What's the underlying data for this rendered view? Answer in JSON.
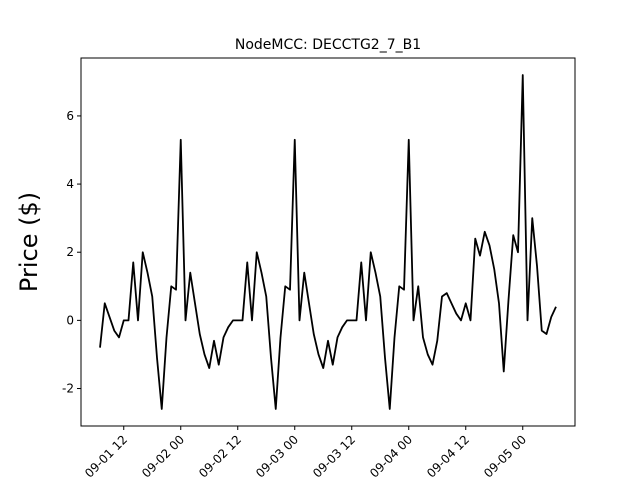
{
  "chart_data": {
    "type": "line",
    "title": "NodeMCC: DECCTG2_7_B1",
    "y_label": "Price ($)",
    "x": [
      "09-01 07",
      "09-01 08",
      "09-01 09",
      "09-01 10",
      "09-01 11",
      "09-01 12",
      "09-01 13",
      "09-01 14",
      "09-01 15",
      "09-01 16",
      "09-01 17",
      "09-01 18",
      "09-01 19",
      "09-01 20",
      "09-01 21",
      "09-01 22",
      "09-01 23",
      "09-02 00",
      "09-02 01",
      "09-02 02",
      "09-02 03",
      "09-02 04",
      "09-02 05",
      "09-02 06",
      "09-02 07",
      "09-02 08",
      "09-02 09",
      "09-02 10",
      "09-02 11",
      "09-02 12",
      "09-02 13",
      "09-02 14",
      "09-02 15",
      "09-02 16",
      "09-02 17",
      "09-02 18",
      "09-02 19",
      "09-02 20",
      "09-02 21",
      "09-02 22",
      "09-02 23",
      "09-03 00",
      "09-03 01",
      "09-03 02",
      "09-03 03",
      "09-03 04",
      "09-03 05",
      "09-03 06",
      "09-03 07",
      "09-03 08",
      "09-03 09",
      "09-03 10",
      "09-03 11",
      "09-03 12",
      "09-03 13",
      "09-03 14",
      "09-03 15",
      "09-03 16",
      "09-03 17",
      "09-03 18",
      "09-03 19",
      "09-03 20",
      "09-03 21",
      "09-03 22",
      "09-03 23",
      "09-04 00",
      "09-04 01",
      "09-04 02",
      "09-04 03",
      "09-04 04",
      "09-04 05",
      "09-04 06",
      "09-04 07",
      "09-04 08",
      "09-04 09",
      "09-04 10",
      "09-04 11",
      "09-04 12",
      "09-04 13",
      "09-04 14",
      "09-04 15",
      "09-04 16",
      "09-04 17",
      "09-04 18",
      "09-04 19",
      "09-04 20",
      "09-04 21",
      "09-04 22",
      "09-04 23",
      "09-05 00",
      "09-05 01",
      "09-05 02",
      "09-05 03",
      "09-05 04",
      "09-05 05",
      "09-05 06",
      "09-05 07"
    ],
    "series": [
      {
        "name": "DECCTG2_7_B1",
        "color": "#000000",
        "values": [
          -0.8,
          0.5,
          0.1,
          -0.3,
          -0.5,
          0,
          0,
          1.7,
          0,
          2.0,
          1.4,
          0.7,
          -1.1,
          -2.6,
          -0.5,
          1.0,
          0.9,
          5.3,
          0,
          1.4,
          0.5,
          -0.4,
          -1.0,
          -1.4,
          -0.6,
          -1.3,
          -0.5,
          -0.2,
          0,
          0,
          0,
          1.7,
          0,
          2.0,
          1.4,
          0.7,
          -1.1,
          -2.6,
          -0.5,
          1.0,
          0.9,
          5.3,
          0,
          1.4,
          0.5,
          -0.4,
          -1.0,
          -1.4,
          -0.6,
          -1.3,
          -0.5,
          -0.2,
          0,
          0,
          0,
          1.7,
          0,
          2.0,
          1.4,
          0.7,
          -1.1,
          -2.6,
          -0.5,
          1.0,
          0.9,
          5.3,
          0,
          1.0,
          -0.5,
          -1.0,
          -1.3,
          -0.6,
          0.7,
          0.8,
          0.5,
          0.2,
          0,
          0.5,
          0,
          2.4,
          1.9,
          2.6,
          2.2,
          1.5,
          0.5,
          -1.5,
          0.6,
          2.5,
          2.0,
          7.2,
          0,
          3.0,
          1.6,
          -0.3,
          -0.4,
          0.1,
          0.4
        ]
      }
    ],
    "xlim": [
      "09-01 03",
      "09-05 11"
    ],
    "xticks": [
      "09-01 12",
      "09-02 00",
      "09-02 12",
      "09-03 00",
      "09-03 12",
      "09-04 00",
      "09-04 12",
      "09-05 00"
    ],
    "ylim": [
      -3.1,
      7.7
    ],
    "yticks": [
      -2,
      0,
      2,
      4,
      6
    ]
  }
}
